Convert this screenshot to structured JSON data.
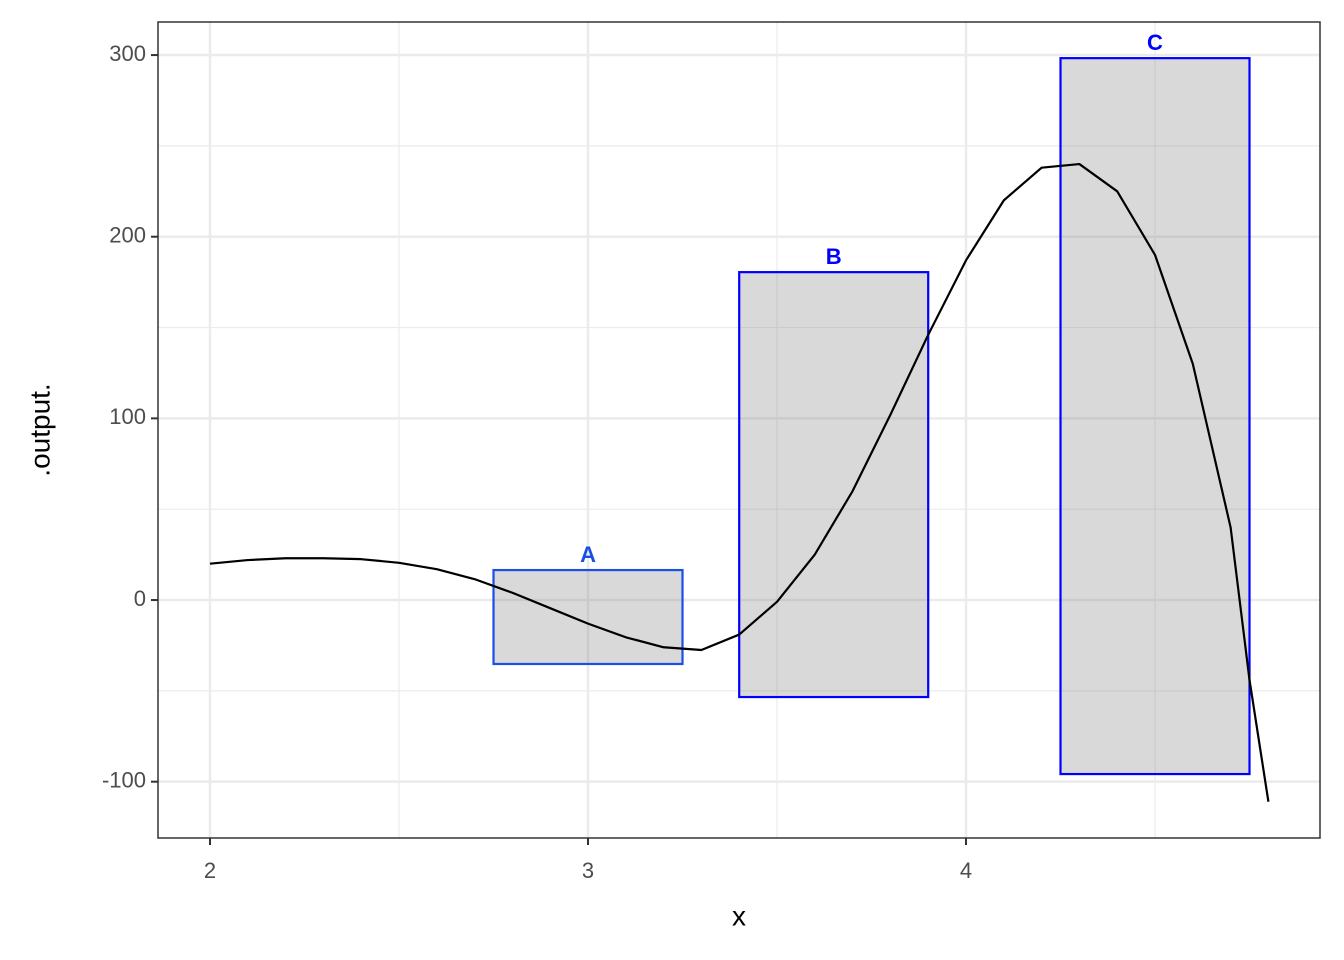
{
  "chart_data": {
    "type": "line",
    "x_label": "x",
    "y_label": ".output.",
    "xlim": [
      1.8624,
      4.9365
    ],
    "ylim": [
      -131,
      318.2
    ],
    "xticks": [
      2,
      3,
      4
    ],
    "yticks": [
      -100,
      0,
      100,
      200,
      300
    ],
    "minor_xticks": [
      2.5,
      3.5,
      4.5
    ],
    "minor_yticks": [
      -50,
      50,
      150,
      250
    ],
    "grid": true,
    "series": [
      {
        "color": "#000000",
        "x": [
          2.0,
          2.1,
          2.2,
          2.3,
          2.4,
          2.5,
          2.6,
          2.7,
          2.8,
          2.9,
          3.0,
          3.1,
          3.2,
          3.3,
          3.4,
          3.5,
          3.6,
          3.7,
          3.8,
          3.9,
          4.0,
          4.1,
          4.2,
          4.3,
          4.4,
          4.5,
          4.6,
          4.7,
          4.75,
          4.8
        ],
        "values": [
          20,
          22,
          23,
          23,
          22.5,
          20.5,
          17,
          11.5,
          4,
          -4.5,
          -13,
          -20.5,
          -26,
          -27.5,
          -19,
          -1,
          25,
          60,
          102,
          146,
          187,
          220,
          238,
          240,
          225,
          190,
          130,
          40,
          -44,
          -111
        ]
      }
    ],
    "rectangles": [
      {
        "label": "A",
        "xmin": 2.75,
        "xmax": 3.25,
        "ymin": -35.2,
        "ymax": 16.5,
        "color": "#1a4fe6"
      },
      {
        "label": "B",
        "xmin": 3.4,
        "xmax": 3.9,
        "ymin": -53.4,
        "ymax": 180.5,
        "color": "#0000ff"
      },
      {
        "label": "C",
        "xmin": 4.25,
        "xmax": 4.75,
        "ymin": -95.8,
        "ymax": 298.3,
        "color": "#0000ff"
      }
    ]
  }
}
